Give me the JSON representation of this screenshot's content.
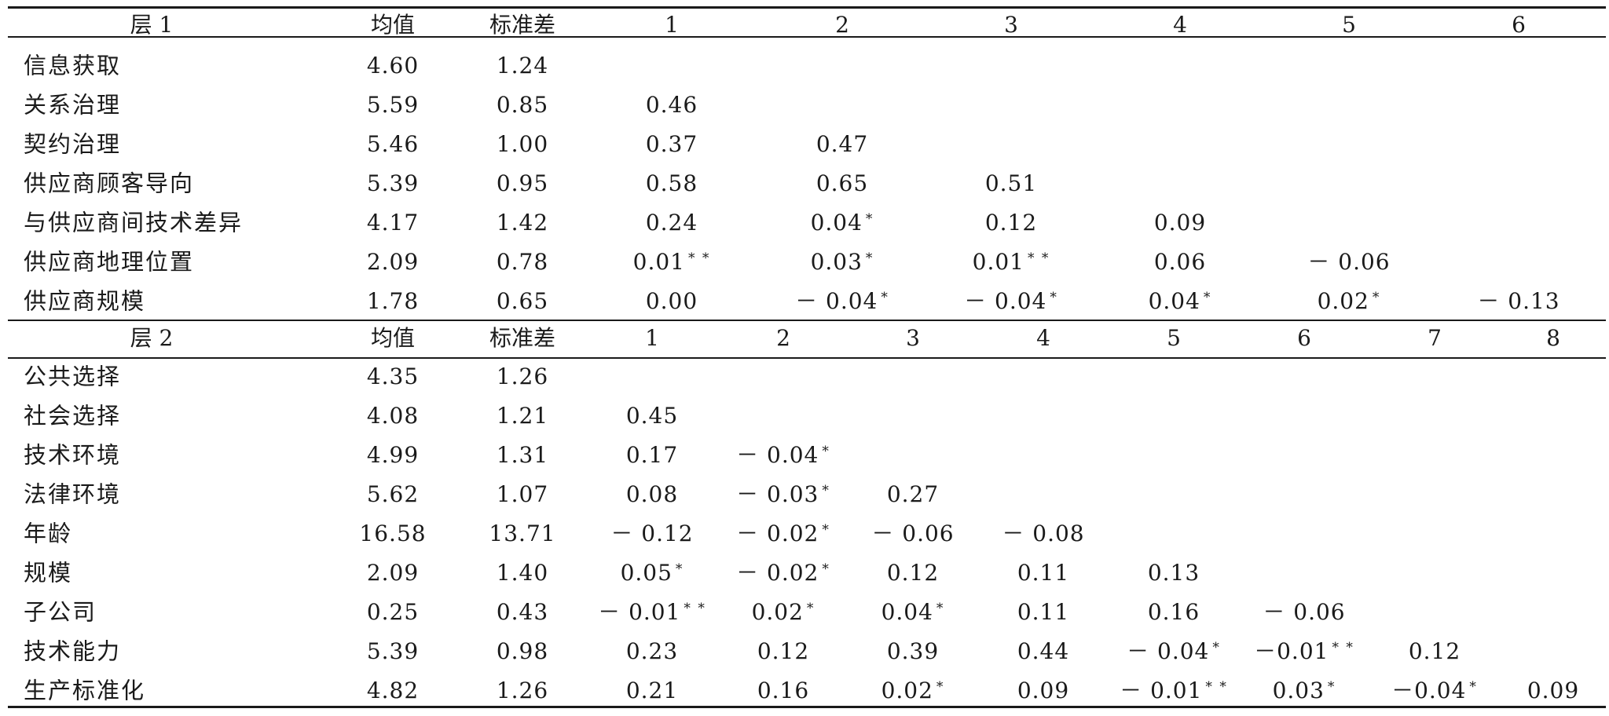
{
  "panels": [
    {
      "id": "layer1",
      "header": [
        "层 1",
        "均值",
        "标准差",
        "1",
        "2",
        "3",
        "4",
        "5",
        "6"
      ],
      "rows": [
        {
          "label": "信息获取",
          "values": [
            "4.60",
            "1.24"
          ]
        },
        {
          "label": "关系治理",
          "values": [
            "5.59",
            "0.85",
            "0.46"
          ]
        },
        {
          "label": "契约治理",
          "values": [
            "5.46",
            "1.00",
            "0.37",
            "0.47"
          ]
        },
        {
          "label": "供应商顾客导向",
          "values": [
            "5.39",
            "0.95",
            "0.58",
            "0.65",
            "0.51"
          ]
        },
        {
          "label": "与供应商间技术差异",
          "values": [
            "4.17",
            "1.42",
            "0.24",
            "0.04 *",
            "0.12",
            "0.09"
          ]
        },
        {
          "label": "供应商地理位置",
          "values": [
            "2.09",
            "0.78",
            "0.01 **",
            "0.03 *",
            "0.01 **",
            "0.06",
            "－ 0.06"
          ]
        },
        {
          "label": "供应商规模",
          "values": [
            "1.78",
            "0.65",
            "0.00",
            "－ 0.04 *",
            "－ 0.04 *",
            "0.04 *",
            "0.02 *",
            "－ 0.13"
          ]
        }
      ]
    },
    {
      "id": "layer2",
      "header": [
        "层 2",
        "均值",
        "标准差",
        "1",
        "2",
        "3",
        "4",
        "5",
        "6",
        "7",
        "8"
      ],
      "rows": [
        {
          "label": "公共选择",
          "values": [
            "4.35",
            "1.26"
          ]
        },
        {
          "label": "社会选择",
          "values": [
            "4.08",
            "1.21",
            "0.45"
          ]
        },
        {
          "label": "技术环境",
          "values": [
            "4.99",
            "1.31",
            "0.17",
            "－ 0.04 *"
          ]
        },
        {
          "label": "法律环境",
          "values": [
            "5.62",
            "1.07",
            "0.08",
            "－ 0.03 *",
            "0.27"
          ]
        },
        {
          "label": "年龄",
          "values": [
            "16.58",
            "13.71",
            "－ 0.12",
            "－ 0.02 *",
            "－ 0.06",
            "－ 0.08"
          ]
        },
        {
          "label": "规模",
          "values": [
            "2.09",
            "1.40",
            "0.05 *",
            "－ 0.02 *",
            "0.12",
            "0.11",
            "0.13"
          ]
        },
        {
          "label": "子公司",
          "values": [
            "0.25",
            "0.43",
            "－ 0.01 **",
            "0.02 *",
            "0.04 *",
            "0.11",
            "0.16",
            "－ 0.06"
          ]
        },
        {
          "label": "技术能力",
          "values": [
            "5.39",
            "0.98",
            "0.23",
            "0.12",
            "0.39",
            "0.44",
            "－ 0.04 *",
            "－0.01 **",
            "0.12"
          ]
        },
        {
          "label": "生产标准化",
          "values": [
            "4.82",
            "1.26",
            "0.21",
            "0.16",
            "0.02 *",
            "0.09",
            "－ 0.01 **",
            "0.03 *",
            "－0.04 *",
            "0.09"
          ]
        }
      ]
    }
  ]
}
